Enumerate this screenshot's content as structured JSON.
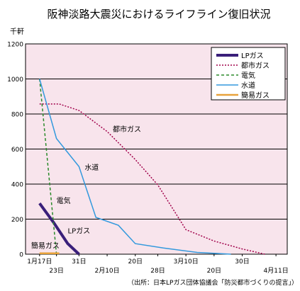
{
  "chart_data": {
    "type": "line",
    "title": "阪神淡路大震災におけるライフライン復旧状況",
    "unit_label": "千軒",
    "ylim": [
      0,
      1200
    ],
    "y_ticks": [
      0,
      200,
      400,
      600,
      800,
      1000,
      1200
    ],
    "x_ticks": [
      {
        "x": 0,
        "label": "1月17日",
        "row": 1
      },
      {
        "x": 6,
        "label": "23日",
        "row": 2
      },
      {
        "x": 14,
        "label": "31日",
        "row": 1
      },
      {
        "x": 24,
        "label": "2月10日",
        "row": 2
      },
      {
        "x": 34,
        "label": "20日",
        "row": 1
      },
      {
        "x": 42,
        "label": "28日",
        "row": 2
      },
      {
        "x": 52,
        "label": "3月10日",
        "row": 1
      },
      {
        "x": 62,
        "label": "20日",
        "row": 2
      },
      {
        "x": 72,
        "label": "30日",
        "row": 1
      },
      {
        "x": 84,
        "label": "4月11日",
        "row": 2
      }
    ],
    "xlim": [
      -5,
      88
    ],
    "series": [
      {
        "name": "LPガス",
        "color": "#3a1f7a",
        "dash": "none",
        "width": 4,
        "points": [
          [
            0,
            290
          ],
          [
            5,
            180
          ],
          [
            10,
            60
          ],
          [
            14,
            0
          ]
        ]
      },
      {
        "name": "都市ガス",
        "color": "#a0004a",
        "dash": "2,2",
        "width": 1.5,
        "points": [
          [
            0,
            857
          ],
          [
            7,
            857
          ],
          [
            14,
            820
          ],
          [
            24,
            700
          ],
          [
            34,
            540
          ],
          [
            42,
            395
          ],
          [
            52,
            140
          ],
          [
            62,
            75
          ],
          [
            72,
            30
          ],
          [
            80,
            0
          ]
        ]
      },
      {
        "name": "電気",
        "color": "#2a8a2a",
        "dash": "4,3",
        "width": 1.5,
        "points": [
          [
            0,
            1000
          ],
          [
            6,
            0
          ]
        ]
      },
      {
        "name": "水道",
        "color": "#3399dd",
        "dash": "none",
        "width": 1.5,
        "points": [
          [
            0,
            1000
          ],
          [
            6,
            660
          ],
          [
            14,
            500
          ],
          [
            20,
            210
          ],
          [
            28,
            165
          ],
          [
            34,
            60
          ],
          [
            44,
            35
          ],
          [
            56,
            10
          ],
          [
            68,
            0
          ]
        ]
      },
      {
        "name": "簡易ガス",
        "color": "#e8a23a",
        "dash": "none",
        "width": 2.5,
        "points": [
          [
            0,
            5
          ],
          [
            7,
            5
          ]
        ]
      }
    ],
    "annotations": [
      {
        "text": "都市ガス",
        "x": 26,
        "y": 700
      },
      {
        "text": "水道",
        "x": 16,
        "y": 480
      },
      {
        "text": "電気",
        "x": 6,
        "y": 290
      },
      {
        "text": "LPガス",
        "x": 10,
        "y": 120
      },
      {
        "text": "簡易ガス",
        "x": -3,
        "y": 35
      }
    ],
    "source": "（出所：日本LPガス団体協議会「防災都市づくりの提言」）"
  }
}
